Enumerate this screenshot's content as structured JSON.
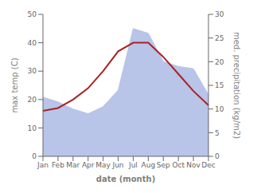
{
  "chart_data": {
    "type": "line",
    "categories": [
      "Jan",
      "Feb",
      "Mar",
      "Apr",
      "May",
      "Jun",
      "Jul",
      "Aug",
      "Sep",
      "Oct",
      "Nov",
      "Dec"
    ],
    "xlabel": "date (month)",
    "ylabel": "max temp (C)",
    "y2label": "med. precipitation (kg/m2)",
    "ylim": [
      0,
      50
    ],
    "yticks": [
      0,
      10,
      20,
      30,
      40,
      50
    ],
    "y2lim": [
      0,
      30
    ],
    "y2ticks": [
      0,
      5,
      10,
      15,
      20,
      25,
      30
    ],
    "grid": false,
    "series": [
      {
        "type": "area",
        "axis": "y2",
        "color": "#b8c4e8",
        "values": [
          12.5,
          11.5,
          10.0,
          9.0,
          10.5,
          14.0,
          27.0,
          26.0,
          20.0,
          19.0,
          18.5,
          13.0
        ]
      },
      {
        "type": "line",
        "color": "#aa2222",
        "values": [
          16,
          17,
          20,
          24,
          30,
          37,
          40,
          40,
          35,
          29,
          23,
          18
        ]
      }
    ]
  }
}
